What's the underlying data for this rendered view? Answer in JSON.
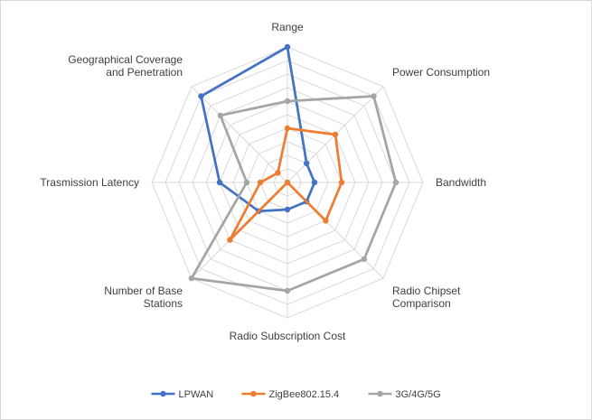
{
  "chart_data": {
    "type": "radar",
    "title": "",
    "axes": [
      [
        "Range"
      ],
      [
        "Power Consumption"
      ],
      [
        "Bandwidth"
      ],
      [
        "Radio Chipset",
        "Comparison"
      ],
      [
        "Radio Subscription Cost"
      ],
      [
        "Number of Base",
        "Stations"
      ],
      [
        "Trasmission Latency"
      ],
      [
        "Geographical Coverage",
        "and Penetration"
      ]
    ],
    "rlim": [
      0,
      10
    ],
    "grid_levels": 10,
    "grid": true,
    "legend_position": "bottom",
    "series": [
      {
        "name": "LPWAN",
        "color": "#4472C4",
        "values": [
          10,
          2,
          2,
          2,
          2,
          3,
          5,
          9
        ]
      },
      {
        "name": "ZigBee802.15.4",
        "color": "#ED7D31",
        "values": [
          4,
          5,
          4,
          4,
          0,
          6,
          2,
          1
        ]
      },
      {
        "name": "3G/4G/5G",
        "color": "#A5A5A5",
        "values": [
          6,
          9,
          8,
          8,
          8,
          10,
          3,
          7
        ]
      }
    ]
  }
}
